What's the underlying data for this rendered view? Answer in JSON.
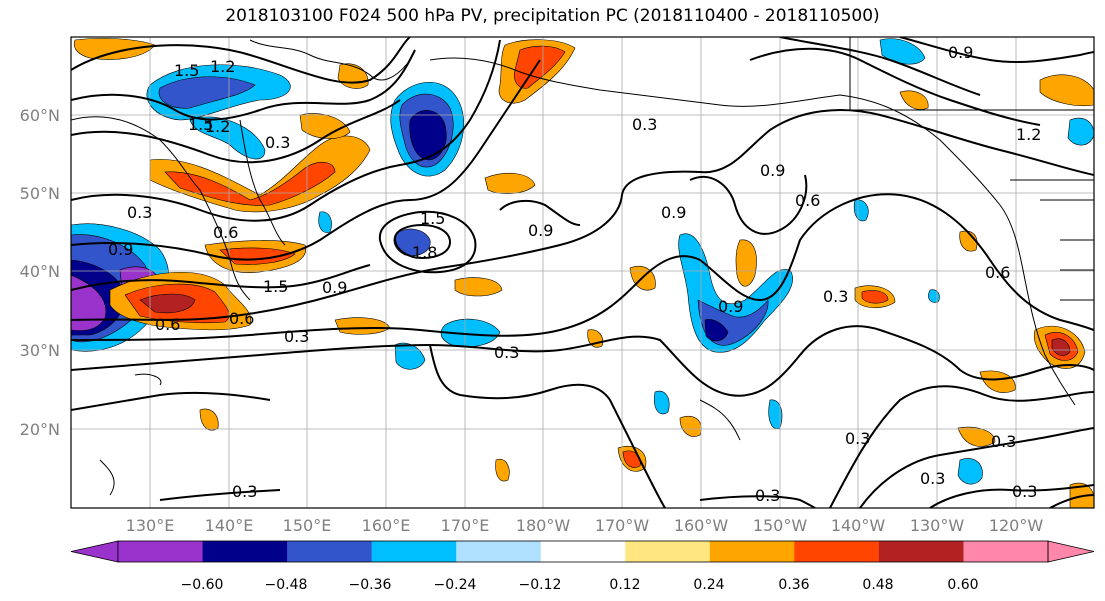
{
  "title": "2018103100 F024 500 hPa PV, precipitation PC (2018110400 - 2018110500)",
  "map": {
    "lat_labels": [
      "60°N",
      "50°N",
      "40°N",
      "30°N",
      "20°N"
    ],
    "lon_labels": [
      "130°E",
      "140°E",
      "150°E",
      "160°E",
      "170°E",
      "180°W",
      "170°W",
      "160°W",
      "150°W",
      "140°W",
      "130°W",
      "120°W"
    ],
    "contour_labels": [
      "1.5",
      "1.2",
      "1.5",
      "1.2",
      "0.3",
      "0.3",
      "0.9",
      "0.6",
      "0.6",
      "1.5",
      "1.8",
      "0.9",
      "0.3",
      "0.6",
      "0.9",
      "1.5",
      "0.3",
      "0.3",
      "0.9",
      "0.9",
      "0.9",
      "0.6",
      "0.9",
      "0.3",
      "1.2",
      "0.6",
      "0.3",
      "0.3",
      "0.3",
      "0.3",
      "0.3",
      "0.3"
    ]
  },
  "colorbar": {
    "ticks": [
      "−0.60",
      "−0.48",
      "−0.36",
      "−0.24",
      "−0.12",
      "0.12",
      "0.24",
      "0.36",
      "0.48",
      "0.60"
    ],
    "colors": [
      "#9933cc",
      "#00008b",
      "#3355cc",
      "#00bfff",
      "#b0e0ff",
      "#ffffff",
      "#ffe680",
      "#ffa500",
      "#ff4500",
      "#b22222",
      "#ff88aa"
    ]
  }
}
